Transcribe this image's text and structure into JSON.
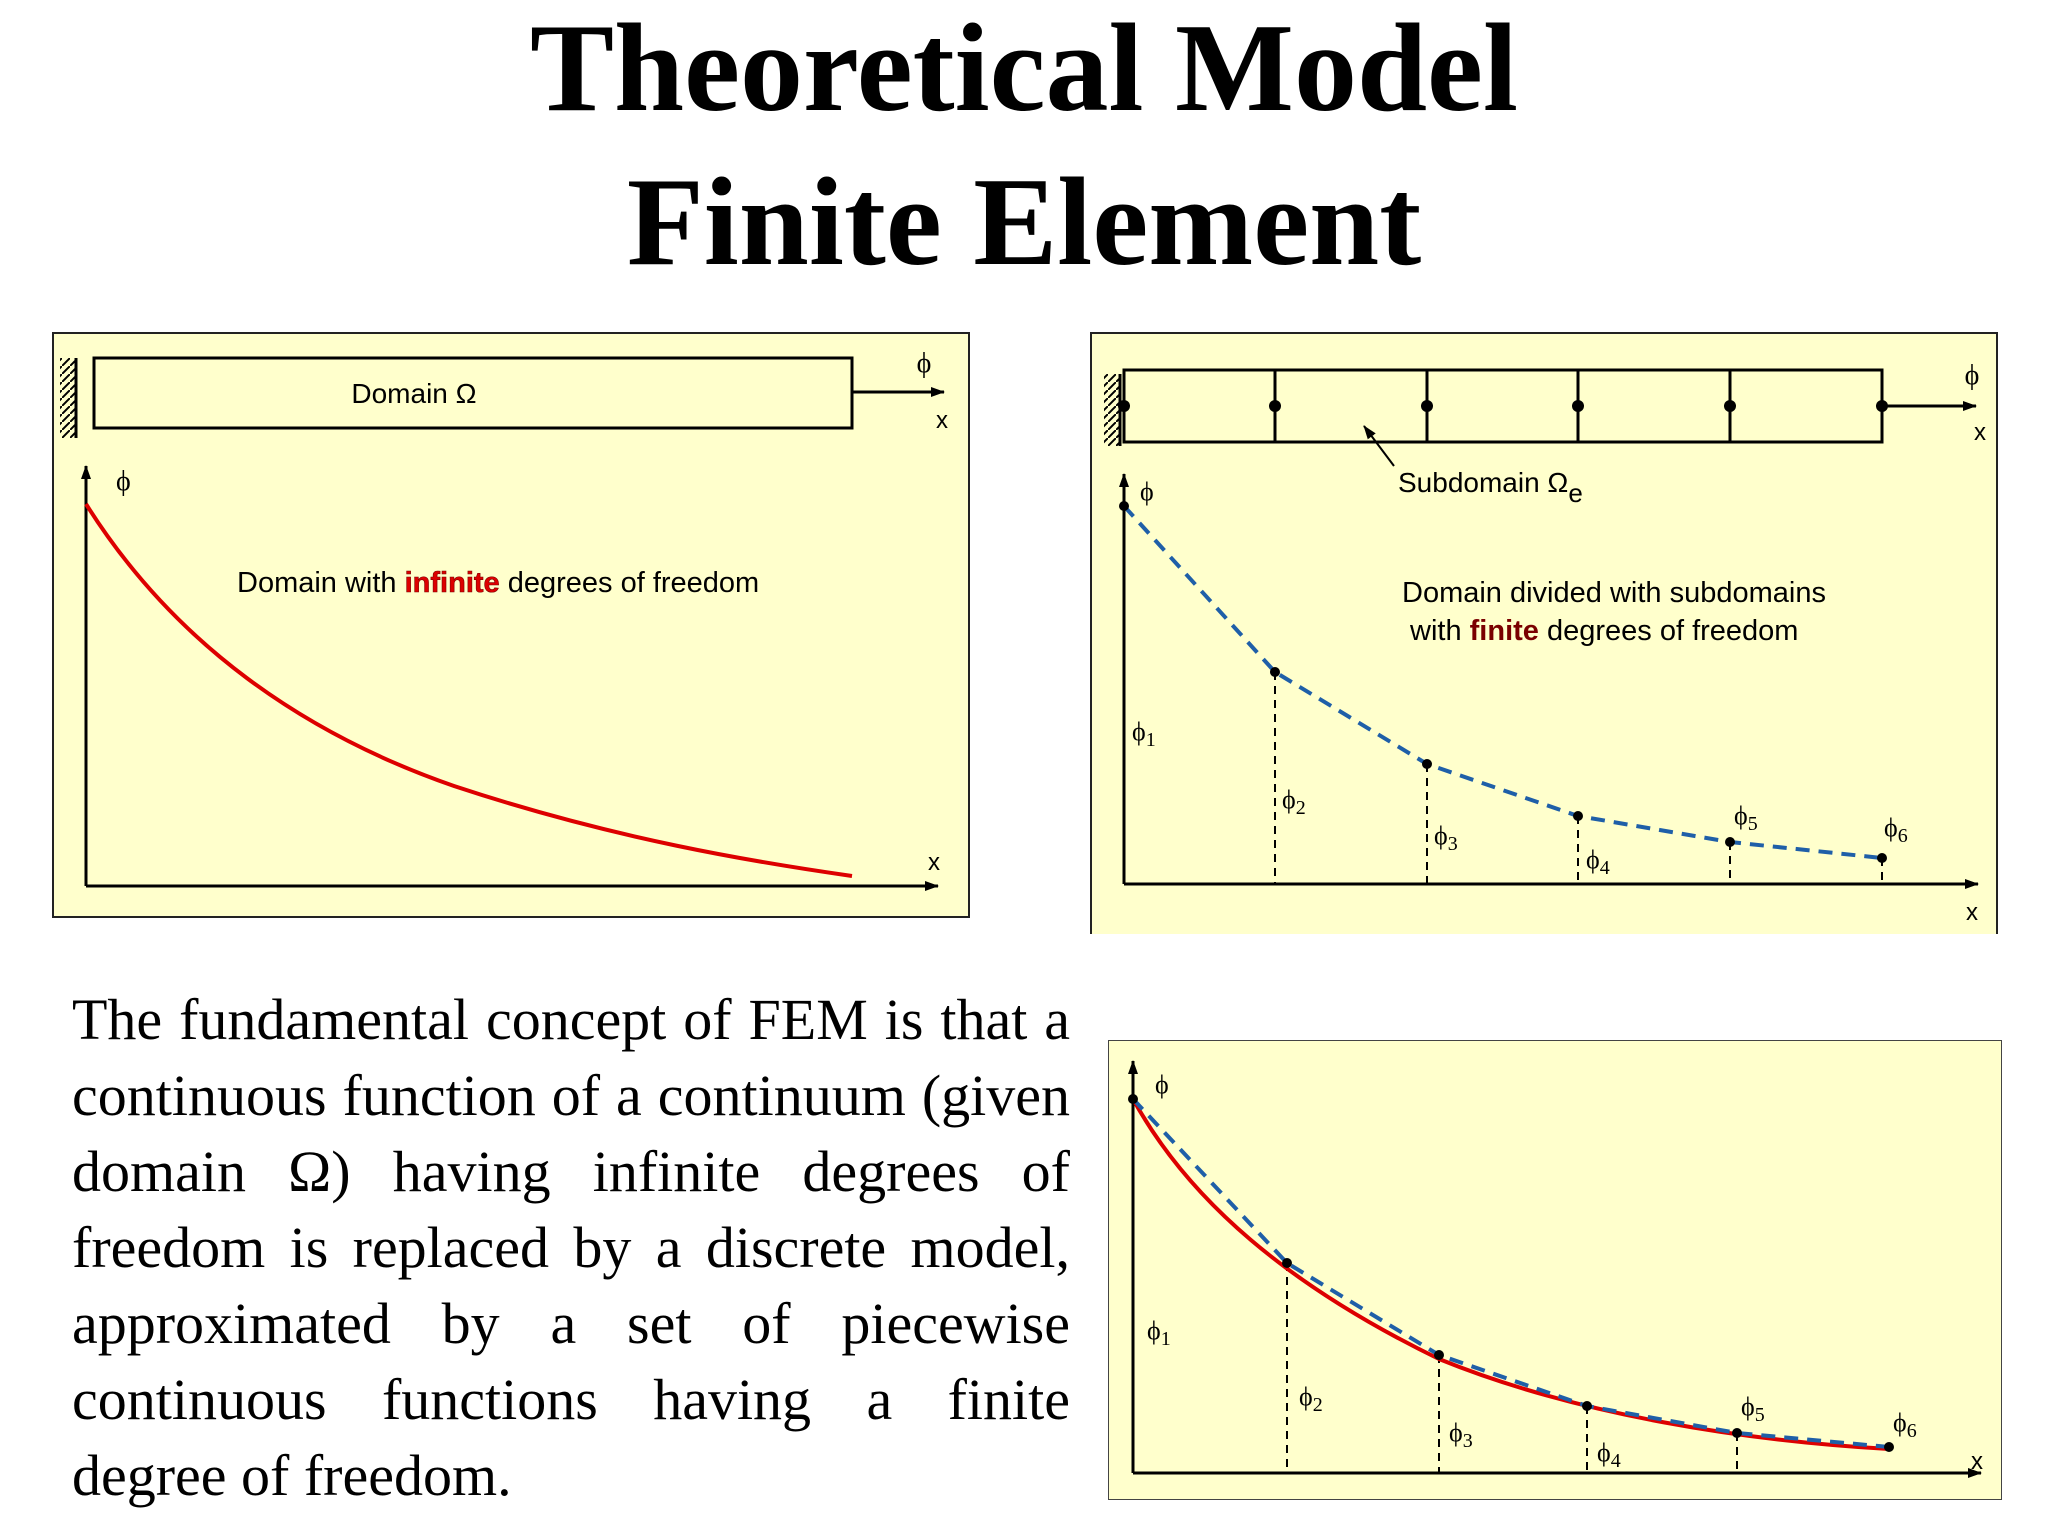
{
  "title": {
    "line1": "Theoretical Model",
    "line2": "Finite Element"
  },
  "colors": {
    "panel_bg": "#ffffcc",
    "curve_red": "#dd0000",
    "dashed_blue": "#1f5fa8",
    "highlight_finite": "#7a0000"
  },
  "panel_continuous": {
    "phi_axis": "ϕ",
    "x_axis": "x",
    "domain_label": "Domain Ω",
    "output_phi": "ϕ",
    "output_x": "x",
    "caption_before": "Domain with ",
    "caption_highlight": "infinite",
    "caption_after": " degrees of freedom"
  },
  "panel_discrete": {
    "phi_axis": "ϕ",
    "x_axis": "x",
    "output_phi": "ϕ",
    "output_x": "x",
    "subdomain_label": "Subdomain Ω",
    "subdomain_sub": "e",
    "caption_line1": "Domain divided with subdomains",
    "caption_line2_before": "with ",
    "caption_line2_highlight": "finite",
    "caption_line2_after": " degrees of freedom",
    "nodes": [
      {
        "name": "ϕ",
        "sub": "1"
      },
      {
        "name": "ϕ",
        "sub": "2"
      },
      {
        "name": "ϕ",
        "sub": "3"
      },
      {
        "name": "ϕ",
        "sub": "4"
      },
      {
        "name": "ϕ",
        "sub": "5"
      },
      {
        "name": "ϕ",
        "sub": "6"
      }
    ]
  },
  "panel_comparison": {
    "phi_axis": "ϕ",
    "x_axis": "x",
    "nodes": [
      {
        "name": "ϕ",
        "sub": "1"
      },
      {
        "name": "ϕ",
        "sub": "2"
      },
      {
        "name": "ϕ",
        "sub": "3"
      },
      {
        "name": "ϕ",
        "sub": "4"
      },
      {
        "name": "ϕ",
        "sub": "5"
      },
      {
        "name": "ϕ",
        "sub": "6"
      }
    ]
  },
  "description": "The fundamental concept of FEM is that a continuous function of a continuum (given domain Ω) having infinite degrees of freedom is replaced by a discrete model, approximated by a set of piecewise continuous functions having a finite degree of freedom."
}
